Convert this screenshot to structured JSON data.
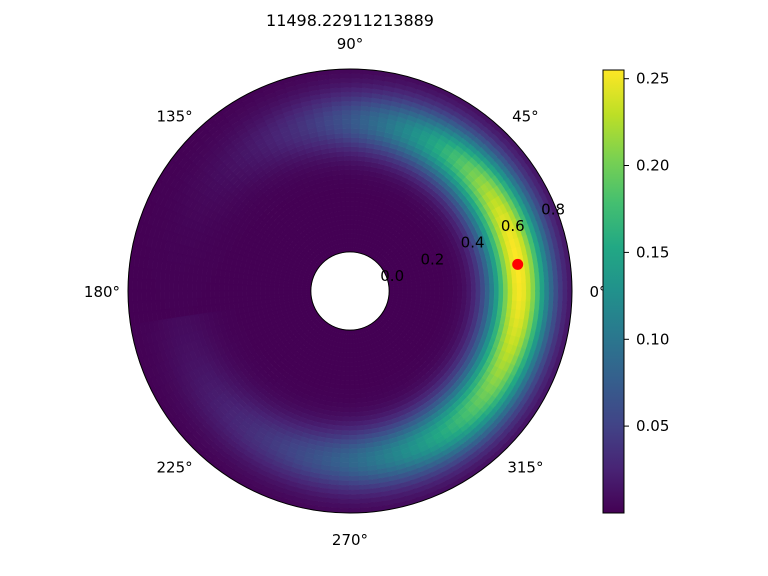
{
  "chart_data": {
    "type": "heatmap",
    "projection": "polar",
    "title": "11498.22911213889",
    "theta_tick_labels": [
      "0°",
      "45°",
      "90°",
      "135°",
      "180°",
      "225°",
      "270°",
      "315°"
    ],
    "theta_ticks_deg": [
      0,
      45,
      90,
      135,
      180,
      225,
      270,
      315
    ],
    "r_tick_labels": [
      "0.0",
      "0.2",
      "0.4",
      "0.6",
      "0.8"
    ],
    "r_ticks": [
      0.0,
      0.2,
      0.4,
      0.6,
      0.8
    ],
    "r_label_position_deg": 22.5,
    "rlim": [
      -0.18,
      0.84
    ],
    "data_r_range": [
      0.0,
      0.84
    ],
    "inner_circle_r": 0.0,
    "colormap": "viridis",
    "colorbar": {
      "tick_labels": [
        "0.05",
        "0.10",
        "0.15",
        "0.20",
        "0.25"
      ],
      "ticks": [
        0.05,
        0.1,
        0.15,
        0.2,
        0.25
      ],
      "vmin": 0.0,
      "vmax": 0.255
    },
    "field": {
      "peak_value": 0.255,
      "peak_r": 0.6,
      "peak_theta_deg": 10,
      "radial_width": 0.14,
      "angular_falloff": "highest near 0°–30°, fading to near zero around 150° and 240°"
    },
    "marker": {
      "r": 0.6,
      "theta_deg": 9,
      "color": "#ff0000"
    }
  }
}
